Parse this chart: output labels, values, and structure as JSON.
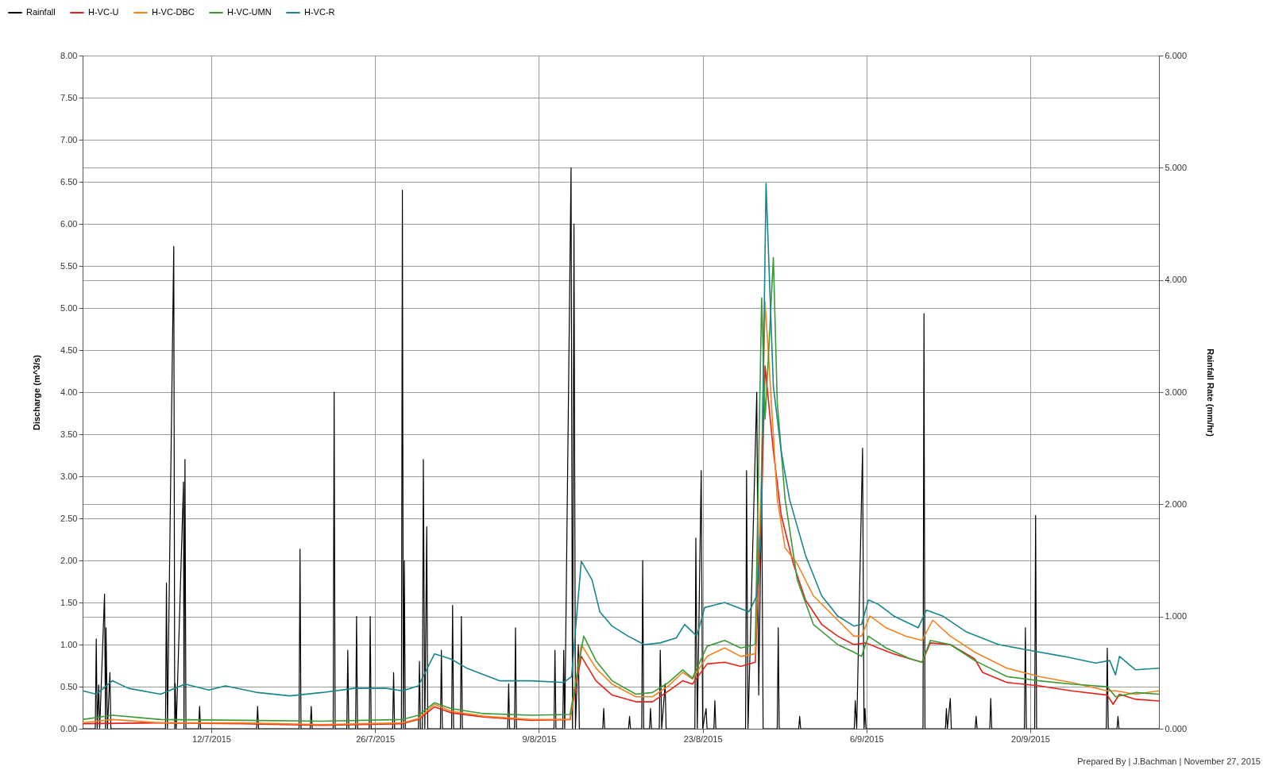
{
  "chart_data": {
    "type": "line",
    "ylabel": "Discharge (m^3/s)",
    "y2label": "Rainfall Rate (mm/hr)",
    "annotations": [
      "Prepared By | J.Bachman | November 27, 2015"
    ],
    "xlim": [
      "2015-07-01T00:00",
      "2015-10-01T00:00"
    ],
    "xticks": [
      {
        "value": "2015-07-12",
        "label": "12/7/2015"
      },
      {
        "value": "2015-07-26",
        "label": "26/7/2015"
      },
      {
        "value": "2015-08-09",
        "label": "9/8/2015"
      },
      {
        "value": "2015-08-23",
        "label": "23/8/2015"
      },
      {
        "value": "2015-09-06",
        "label": "6/9/2015"
      },
      {
        "value": "2015-09-20",
        "label": "20/9/2015"
      }
    ],
    "ylim": [
      0,
      8
    ],
    "yticks": [
      {
        "value": 0,
        "label": "0.00"
      },
      {
        "value": 0.5,
        "label": "0.50"
      },
      {
        "value": 1,
        "label": "1.00"
      },
      {
        "value": 1.5,
        "label": "1.50"
      },
      {
        "value": 2,
        "label": "2.00"
      },
      {
        "value": 2.5,
        "label": "2.50"
      },
      {
        "value": 3,
        "label": "3.00"
      },
      {
        "value": 3.5,
        "label": "3.50"
      },
      {
        "value": 4,
        "label": "4.00"
      },
      {
        "value": 4.5,
        "label": "4.50"
      },
      {
        "value": 5,
        "label": "5.00"
      },
      {
        "value": 5.5,
        "label": "5.50"
      },
      {
        "value": 6,
        "label": "6.00"
      },
      {
        "value": 6.5,
        "label": "6.50"
      },
      {
        "value": 7,
        "label": "7.00"
      },
      {
        "value": 7.5,
        "label": "7.50"
      },
      {
        "value": 8,
        "label": "8.00"
      }
    ],
    "y2lim": [
      0,
      6
    ],
    "y2ticks": [
      {
        "value": 0,
        "label": "0.000"
      },
      {
        "value": 1,
        "label": "1.000"
      },
      {
        "value": 2,
        "label": "2.000"
      },
      {
        "value": 3,
        "label": "3.000"
      },
      {
        "value": 4,
        "label": "4.000"
      },
      {
        "value": 5,
        "label": "5.000"
      },
      {
        "value": 6,
        "label": "6.000"
      }
    ],
    "grid": true,
    "legend": "top left",
    "series": [
      {
        "name": "Rainfall",
        "color": "#000000",
        "axis": "y2",
        "x": [
          "2015-07-01T00:00",
          "2015-07-02T02:00",
          "2015-07-02T04:00",
          "2015-07-02T06:00",
          "2015-07-02T09:00",
          "2015-07-02T11:00",
          "2015-07-02T21:00",
          "2015-07-02T23:00",
          "2015-07-03T00:00",
          "2015-07-03T03:00",
          "2015-07-03T08:00",
          "2015-07-03T10:00",
          "2015-07-08T02:00",
          "2015-07-08T04:00",
          "2015-07-08T06:00",
          "2015-07-08T19:00",
          "2015-07-08T21:00",
          "2015-07-08T22:00",
          "2015-07-09T00:00",
          "2015-07-09T15:00",
          "2015-07-09T16:00",
          "2015-07-09T18:00",
          "2015-07-09T20:00",
          "2015-07-10T22:00",
          "2015-07-11T00:00",
          "2015-07-11T02:00",
          "2015-07-15T21:00",
          "2015-07-15T23:00",
          "2015-07-16T01:00",
          "2015-07-19T12:00",
          "2015-07-19T14:00",
          "2015-07-19T16:00",
          "2015-07-20T11:00",
          "2015-07-20T13:00",
          "2015-07-20T15:00",
          "2015-07-22T10:00",
          "2015-07-22T12:00",
          "2015-07-22T14:00",
          "2015-07-23T14:00",
          "2015-07-23T16:00",
          "2015-07-23T18:00",
          "2015-07-24T08:00",
          "2015-07-24T10:00",
          "2015-07-24T12:00",
          "2015-07-25T12:00",
          "2015-07-25T14:00",
          "2015-07-25T16:00",
          "2015-07-27T12:00",
          "2015-07-27T14:00",
          "2015-07-27T16:00",
          "2015-07-28T06:00",
          "2015-07-28T08:00",
          "2015-07-28T10:00",
          "2015-07-28T12:00",
          "2015-07-28T14:00",
          "2015-07-29T17:00",
          "2015-07-29T19:00",
          "2015-07-29T21:00",
          "2015-07-30T01:00",
          "2015-07-30T03:00",
          "2015-07-30T06:00",
          "2015-07-30T10:00",
          "2015-07-30T12:00",
          "2015-07-31T14:00",
          "2015-07-31T16:00",
          "2015-07-31T18:00",
          "2015-08-01T13:00",
          "2015-08-01T15:00",
          "2015-08-01T17:00",
          "2015-08-02T07:00",
          "2015-08-02T09:00",
          "2015-08-02T11:00",
          "2015-08-06T08:00",
          "2015-08-06T10:00",
          "2015-08-06T12:00",
          "2015-08-06T22:00",
          "2015-08-07T00:00",
          "2015-08-07T02:00",
          "2015-08-10T07:00",
          "2015-08-10T09:00",
          "2015-08-10T11:00",
          "2015-08-11T01:00",
          "2015-08-11T03:00",
          "2015-08-11T05:00",
          "2015-08-11T18:00",
          "2015-08-11T21:00",
          "2015-08-12T00:00",
          "2015-08-12T03:00",
          "2015-08-12T09:00",
          "2015-08-12T11:00",
          "2015-08-14T11:00",
          "2015-08-14T13:00",
          "2015-08-14T15:00",
          "2015-08-16T16:00",
          "2015-08-16T18:00",
          "2015-08-16T20:00",
          "2015-08-17T19:00",
          "2015-08-17T21:00",
          "2015-08-17T23:00",
          "2015-08-18T11:00",
          "2015-08-18T13:00",
          "2015-08-18T15:00",
          "2015-08-19T07:00",
          "2015-08-19T09:00",
          "2015-08-19T12:00",
          "2015-08-19T19:00",
          "2015-08-19T21:00",
          "2015-08-22T08:00",
          "2015-08-22T10:00",
          "2015-08-22T13:00",
          "2015-08-22T21:00",
          "2015-08-23T00:00",
          "2015-08-23T07:00",
          "2015-08-23T09:00",
          "2015-08-23T23:00",
          "2015-08-24T01:00",
          "2015-08-24T03:00",
          "2015-08-26T16:00",
          "2015-08-26T18:00",
          "2015-08-26T21:00",
          "2015-08-27T15:00",
          "2015-08-27T19:00",
          "2015-08-28T01:00",
          "2015-08-28T04:00",
          "2015-08-29T09:00",
          "2015-08-29T11:00",
          "2015-08-29T13:00",
          "2015-08-31T05:00",
          "2015-08-31T07:00",
          "2015-08-31T09:00",
          "2015-09-04T23:00",
          "2015-09-05T01:00",
          "2015-09-05T04:00",
          "2015-09-05T16:00",
          "2015-09-05T19:00",
          "2015-09-05T21:00",
          "2015-09-05T23:00",
          "2015-09-10T20:00",
          "2015-09-10T22:00",
          "2015-09-11T00:00",
          "2015-09-12T18:00",
          "2015-09-12T20:00",
          "2015-09-12T22:00",
          "2015-09-13T04:00",
          "2015-09-13T06:00",
          "2015-09-15T07:00",
          "2015-09-15T09:00",
          "2015-09-15T11:00",
          "2015-09-16T13:00",
          "2015-09-16T15:00",
          "2015-09-16T17:00",
          "2015-09-19T12:00",
          "2015-09-19T14:00",
          "2015-09-19T16:00",
          "2015-09-20T09:00",
          "2015-09-20T11:00",
          "2015-09-20T13:00",
          "2015-09-26T12:00",
          "2015-09-26T14:00",
          "2015-09-26T16:00",
          "2015-09-27T10:00",
          "2015-09-27T12:00",
          "2015-09-27T14:00",
          "2015-10-01T00:00"
        ],
        "values": [
          0,
          0,
          0.8,
          0,
          0.39,
          0,
          1.2,
          0,
          0.9,
          0,
          0.5,
          0,
          0,
          1.3,
          0,
          4.3,
          0,
          0.4,
          0,
          2.2,
          0,
          2.4,
          0,
          0,
          0.2,
          0,
          0,
          0.2,
          0,
          0,
          1.6,
          0,
          0,
          0.2,
          0,
          0,
          3.0,
          0,
          0,
          0.7,
          0,
          0,
          1.0,
          0,
          0,
          1.0,
          0,
          0,
          0.5,
          0,
          0,
          4.8,
          0,
          1.5,
          0,
          0,
          0.6,
          0,
          0,
          2.4,
          0,
          1.8,
          0,
          0,
          0.7,
          0,
          0,
          1.1,
          0,
          0,
          1.0,
          0,
          0,
          0.4,
          0,
          0,
          0.9,
          0,
          0,
          0.7,
          0,
          0,
          0.7,
          0,
          5.0,
          0,
          4.5,
          0,
          0.75,
          0,
          0,
          0.18,
          0,
          0,
          0.11,
          0,
          0,
          1.5,
          0,
          0,
          0.18,
          0,
          0,
          0.7,
          0,
          0.4,
          0,
          0,
          1.7,
          0,
          2.3,
          0,
          0.18,
          0,
          0,
          0.25,
          0,
          0,
          2.3,
          0,
          3.0,
          0.3,
          2.2,
          0,
          0,
          0.9,
          0,
          0,
          0.11,
          0,
          0,
          0.25,
          0,
          2.5,
          0,
          0.18,
          0,
          0,
          3.7,
          0,
          0,
          0.18,
          0,
          0.27,
          0,
          0,
          0.11,
          0,
          0,
          0.27,
          0,
          0,
          0.9,
          0,
          0,
          1.9,
          0,
          0,
          0.72,
          0,
          0,
          0.11,
          0,
          0
        ]
      },
      {
        "name": "H-VC-U",
        "color": "#e8201a",
        "x": [
          "2015-07-01T00:00",
          "2015-07-07T16:00",
          "2015-07-14T14:00",
          "2015-07-21T11:00",
          "2015-07-28T08:00",
          "2015-07-29T17:00",
          "2015-07-31T02:00",
          "2015-08-01T11:00",
          "2015-08-04T06:00",
          "2015-08-08T09:00",
          "2015-08-11T16:00",
          "2015-08-12T15:00",
          "2015-08-13T21:00",
          "2015-08-15T06:00",
          "2015-08-17T07:00",
          "2015-08-18T17:00",
          "2015-08-20T02:00",
          "2015-08-21T07:00",
          "2015-08-22T03:00",
          "2015-08-23T09:00",
          "2015-08-24T21:00",
          "2015-08-26T06:00",
          "2015-08-27T12:00",
          "2015-08-28T00:00",
          "2015-08-28T08:00",
          "2015-08-29T01:00",
          "2015-08-29T17:00",
          "2015-08-30T18:00",
          "2015-08-31T19:00",
          "2015-09-02T04:00",
          "2015-09-03T13:00",
          "2015-09-04T22:00",
          "2015-09-05T23:00",
          "2015-09-07T00:00",
          "2015-09-08T08:00",
          "2015-09-09T18:00",
          "2015-09-10T18:00",
          "2015-09-11T11:00",
          "2015-09-13T04:00",
          "2015-09-15T06:00",
          "2015-09-15T22:00",
          "2015-09-18T00:00",
          "2015-09-20T18:00",
          "2015-09-23T12:00",
          "2015-09-26T14:00",
          "2015-09-27T02:00",
          "2015-09-27T15:00",
          "2015-09-29T00:00",
          "2015-10-01T00:00"
        ],
        "values": [
          0.06,
          0.07,
          0.06,
          0.04,
          0.06,
          0.11,
          0.26,
          0.19,
          0.14,
          0.1,
          0.11,
          0.86,
          0.57,
          0.4,
          0.32,
          0.32,
          0.45,
          0.57,
          0.53,
          0.77,
          0.79,
          0.74,
          0.79,
          2.44,
          4.31,
          3.3,
          2.54,
          1.96,
          1.53,
          1.24,
          1.1,
          1.0,
          1.02,
          0.96,
          0.89,
          0.83,
          0.79,
          1.02,
          1.0,
          0.83,
          0.67,
          0.55,
          0.51,
          0.45,
          0.4,
          0.29,
          0.41,
          0.35,
          0.33
        ]
      },
      {
        "name": "H-VC-DBC",
        "color": "#f5821f",
        "x": [
          "2015-07-01T00:00",
          "2015-07-03T13:00",
          "2015-07-07T16:00",
          "2015-07-14T14:00",
          "2015-07-21T11:00",
          "2015-07-28T08:00",
          "2015-07-29T17:00",
          "2015-07-31T02:00",
          "2015-08-01T11:00",
          "2015-08-04T06:00",
          "2015-08-08T09:00",
          "2015-08-11T16:00",
          "2015-08-12T15:00",
          "2015-08-13T21:00",
          "2015-08-15T06:00",
          "2015-08-17T07:00",
          "2015-08-18T17:00",
          "2015-08-20T02:00",
          "2015-08-21T07:00",
          "2015-08-22T03:00",
          "2015-08-23T09:00",
          "2015-08-24T21:00",
          "2015-08-26T06:00",
          "2015-08-27T12:00",
          "2015-08-28T00:00",
          "2015-08-28T08:00",
          "2015-08-28T16:00",
          "2015-08-29T09:00",
          "2015-08-30T01:00",
          "2015-08-31T02:00",
          "2015-09-01T11:00",
          "2015-09-03T13:00",
          "2015-09-04T22:00",
          "2015-09-05T14:00",
          "2015-09-06T07:00",
          "2015-09-07T16:00",
          "2015-09-09T09:00",
          "2015-09-10T18:00",
          "2015-09-11T16:00",
          "2015-09-13T04:00",
          "2015-09-15T06:00",
          "2015-09-18T00:00",
          "2015-09-20T18:00",
          "2015-09-23T12:00",
          "2015-09-26T14:00",
          "2015-09-27T07:00",
          "2015-09-29T00:00",
          "2015-10-01T00:00"
        ],
        "values": [
          0.07,
          0.11,
          0.07,
          0.07,
          0.05,
          0.07,
          0.12,
          0.29,
          0.21,
          0.15,
          0.11,
          0.11,
          1.0,
          0.72,
          0.53,
          0.38,
          0.38,
          0.51,
          0.67,
          0.59,
          0.86,
          0.96,
          0.86,
          0.89,
          2.92,
          5.07,
          4.35,
          2.73,
          2.15,
          1.96,
          1.58,
          1.29,
          1.1,
          1.1,
          1.34,
          1.2,
          1.1,
          1.05,
          1.29,
          1.1,
          0.91,
          0.72,
          0.62,
          0.55,
          0.45,
          0.45,
          0.41,
          0.45
        ]
      },
      {
        "name": "H-VC-UMN",
        "color": "#3a9a35",
        "x": [
          "2015-07-01T00:00",
          "2015-07-03T13:00",
          "2015-07-07T16:00",
          "2015-07-14T14:00",
          "2015-07-21T11:00",
          "2015-07-28T08:00",
          "2015-07-29T17:00",
          "2015-07-31T02:00",
          "2015-08-01T11:00",
          "2015-08-04T06:00",
          "2015-08-08T09:00",
          "2015-08-11T16:00",
          "2015-08-12T20:00",
          "2015-08-13T21:00",
          "2015-08-15T06:00",
          "2015-08-17T07:00",
          "2015-08-18T17:00",
          "2015-08-20T02:00",
          "2015-08-21T07:00",
          "2015-08-22T03:00",
          "2015-08-23T09:00",
          "2015-08-24T21:00",
          "2015-08-26T06:00",
          "2015-08-27T12:00",
          "2015-08-28T01:00",
          "2015-08-28T08:00",
          "2015-08-28T16:00",
          "2015-08-29T01:00",
          "2015-08-29T09:00",
          "2015-08-30T01:00",
          "2015-08-31T02:00",
          "2015-09-01T11:00",
          "2015-09-03T13:00",
          "2015-09-04T22:00",
          "2015-09-05T14:00",
          "2015-09-06T04:00",
          "2015-09-07T16:00",
          "2015-09-09T18:00",
          "2015-09-10T18:00",
          "2015-09-11T11:00",
          "2015-09-13T04:00",
          "2015-09-15T06:00",
          "2015-09-18T00:00",
          "2015-09-20T18:00",
          "2015-09-23T12:00",
          "2015-09-26T14:00",
          "2015-09-27T07:00",
          "2015-09-29T00:00",
          "2015-10-01T00:00"
        ],
        "values": [
          0.11,
          0.16,
          0.11,
          0.1,
          0.09,
          0.11,
          0.16,
          0.31,
          0.24,
          0.18,
          0.16,
          0.17,
          1.1,
          0.81,
          0.57,
          0.41,
          0.43,
          0.55,
          0.7,
          0.6,
          0.98,
          1.05,
          0.96,
          1.0,
          5.12,
          3.68,
          4.55,
          5.6,
          3.88,
          2.73,
          1.77,
          1.24,
          1.0,
          0.91,
          0.86,
          1.1,
          0.96,
          0.83,
          0.79,
          1.05,
          1.0,
          0.81,
          0.62,
          0.57,
          0.53,
          0.5,
          0.38,
          0.43,
          0.41
        ]
      },
      {
        "name": "H-VC-R",
        "color": "#17868c",
        "x": [
          "2015-07-01T00:00",
          "2015-07-02T04:00",
          "2015-07-03T13:00",
          "2015-07-04T22:00",
          "2015-07-07T16:00",
          "2015-07-09T18:00",
          "2015-07-11T19:00",
          "2015-07-13T05:00",
          "2015-07-15T23:00",
          "2015-07-18T17:00",
          "2015-07-21T11:00",
          "2015-07-24T05:00",
          "2015-07-26T23:00",
          "2015-07-28T08:00",
          "2015-07-29T17:00",
          "2015-07-31T02:00",
          "2015-08-01T11:00",
          "2015-08-02T20:00",
          "2015-08-05T15:00",
          "2015-08-08T09:00",
          "2015-08-11T03:00",
          "2015-08-11T19:00",
          "2015-08-12T15:00",
          "2015-08-13T13:00",
          "2015-08-14T05:00",
          "2015-08-15T06:00",
          "2015-08-16T15:00",
          "2015-08-18T00:00",
          "2015-08-19T09:00",
          "2015-08-20T18:00",
          "2015-08-21T11:00",
          "2015-08-22T12:00",
          "2015-08-23T04:00",
          "2015-08-24T21:00",
          "2015-08-26T23:00",
          "2015-08-27T15:00",
          "2015-08-28T00:00",
          "2015-08-28T10:00",
          "2015-08-28T16:00",
          "2015-08-29T01:00",
          "2015-08-29T17:00",
          "2015-08-30T10:00",
          "2015-08-31T19:00",
          "2015-09-02T04:00",
          "2015-09-03T13:00",
          "2015-09-04T22:00",
          "2015-09-05T14:00",
          "2015-09-06T04:00",
          "2015-09-07T00:00",
          "2015-09-08T08:00",
          "2015-09-10T10:00",
          "2015-09-11T03:00",
          "2015-09-12T12:00",
          "2015-09-14T13:00",
          "2015-09-17T07:00",
          "2015-09-20T01:00",
          "2015-09-22T20:00",
          "2015-09-25T14:00",
          "2015-09-26T19:00",
          "2015-09-27T07:00",
          "2015-09-27T15:00",
          "2015-09-29T00:00",
          "2015-10-01T00:00"
        ],
        "values": [
          0.45,
          0.41,
          0.57,
          0.48,
          0.41,
          0.53,
          0.46,
          0.51,
          0.43,
          0.39,
          0.43,
          0.48,
          0.48,
          0.45,
          0.51,
          0.89,
          0.83,
          0.72,
          0.57,
          0.57,
          0.55,
          0.62,
          1.99,
          1.77,
          1.39,
          1.22,
          1.1,
          1.0,
          1.02,
          1.08,
          1.24,
          1.1,
          1.44,
          1.5,
          1.39,
          1.58,
          2.44,
          6.48,
          5.5,
          4.07,
          3.3,
          2.73,
          2.06,
          1.58,
          1.34,
          1.22,
          1.24,
          1.53,
          1.48,
          1.34,
          1.2,
          1.41,
          1.34,
          1.15,
          1.0,
          0.93,
          0.86,
          0.78,
          0.81,
          0.64,
          0.86,
          0.7,
          0.72
        ]
      }
    ]
  }
}
